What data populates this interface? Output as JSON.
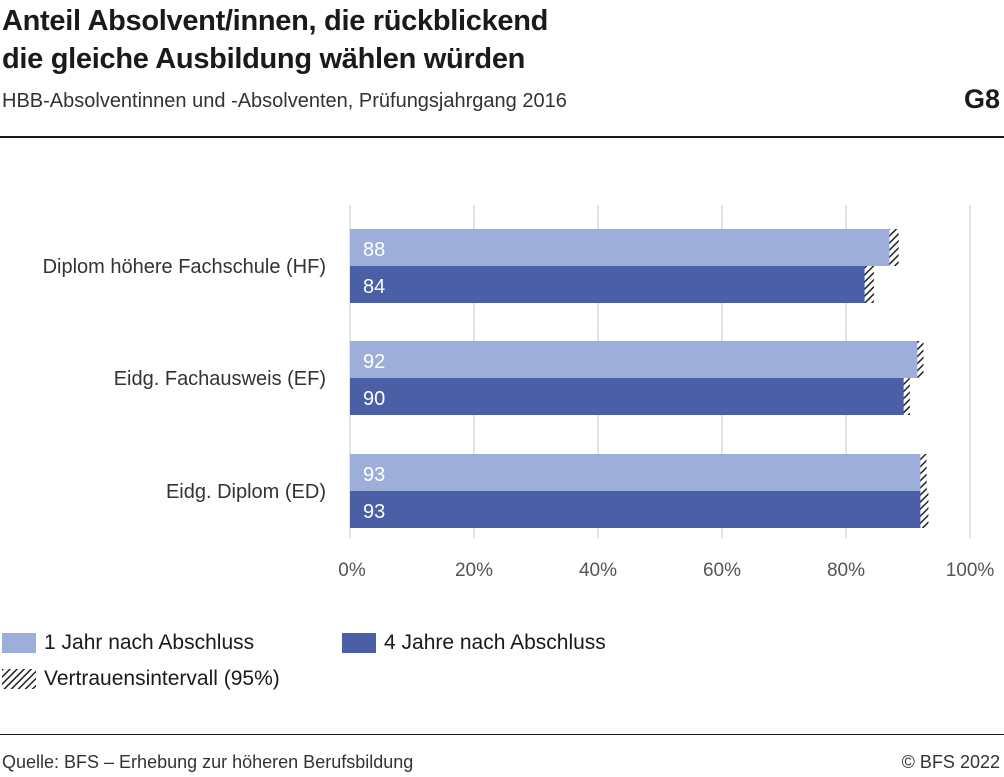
{
  "header": {
    "title_line1": "Anteil Absolvent/innen, die rückblickend",
    "title_line2": "die gleiche Ausbildung wählen würden",
    "subtitle": "HBB-Absolventinnen und -Absolventen, Prüfungsjahrgang 2016",
    "chart_id": "G8"
  },
  "footer": {
    "source": "Quelle: BFS – Erhebung zur höheren Berufsbildung",
    "copyright": "© BFS 2022"
  },
  "colors": {
    "series_1": "#9dafd9",
    "series_2": "#4a5fa6",
    "grid": "#d0d0d0",
    "ci": "#222222"
  },
  "chart_data": {
    "type": "bar",
    "orientation": "horizontal",
    "title": "Anteil Absolvent/innen, die rückblickend die gleiche Ausbildung wählen würden",
    "subtitle": "HBB-Absolventinnen und -Absolventen, Prüfungsjahrgang 2016",
    "categories": [
      "Diplom höhere Fachschule (HF)",
      "Eidg. Fachausweis (EF)",
      "Eidg. Diplom (ED)"
    ],
    "series": [
      {
        "name": "1 Jahr nach Abschluss",
        "values": [
          88,
          92,
          93
        ],
        "ci_low": [
          87,
          91.5,
          92
        ],
        "ci_high": [
          88.5,
          92.5,
          93
        ]
      },
      {
        "name": "4 Jahre nach Abschluss",
        "values": [
          84,
          90,
          93
        ],
        "ci_low": [
          83,
          89.3,
          92
        ],
        "ci_high": [
          84.5,
          90.3,
          93.3
        ]
      }
    ],
    "xlim": [
      0,
      100
    ],
    "xticks": [
      "0%",
      "20%",
      "40%",
      "60%",
      "80%",
      "100%"
    ],
    "xtick_values": [
      0,
      20,
      40,
      60,
      80,
      100
    ],
    "grid": true,
    "legend": {
      "placement": "bottom-left",
      "entries": [
        "1 Jahr nach Abschluss",
        "4 Jahre nach Abschluss"
      ],
      "ci_label": "Vertrauensintervall (95%)"
    },
    "xlabel": "",
    "ylabel": ""
  }
}
